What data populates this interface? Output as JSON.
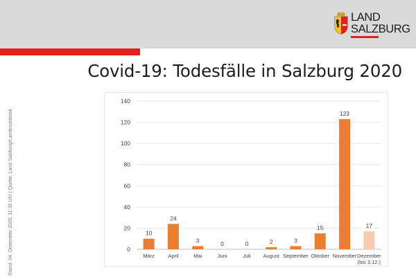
{
  "header": {
    "logo_line1": "LAND",
    "logo_line2": "SALZBURG",
    "title": "Covid-19: Todesfälle in Salzburg 2020"
  },
  "source_note": "Stand: 04. Dezember 2020, 11:30 Uhr | Quelle: Land Salzburg/Landesstatistik",
  "colors": {
    "header_background": "#dadada",
    "accent_red": "#e3211b",
    "bar": "#ed7d31",
    "bar_partial": "#f8cbad",
    "gridline": "#e6e6e6"
  },
  "chart_data": {
    "type": "bar",
    "categories": [
      "März",
      "April",
      "Mai",
      "Juni",
      "Juli",
      "August",
      "September",
      "Oktober",
      "November",
      "Dezember (bis 3.12.)"
    ],
    "category_lines": [
      [
        "März"
      ],
      [
        "April"
      ],
      [
        "Mai"
      ],
      [
        "Juni"
      ],
      [
        "Juli"
      ],
      [
        "August"
      ],
      [
        "September"
      ],
      [
        "Oktober"
      ],
      [
        "November"
      ],
      [
        "Dezember",
        "(bis 3.12.)"
      ]
    ],
    "values": [
      10,
      24,
      3,
      0,
      0,
      2,
      3,
      15,
      123,
      17
    ],
    "partial_month_index": 9,
    "data_labels": [
      "10",
      "24",
      "3",
      "0",
      "0",
      "2",
      "3",
      "15",
      "123",
      "17"
    ],
    "yticks": [
      0,
      20,
      40,
      60,
      80,
      100,
      120,
      140
    ],
    "ylim": [
      0,
      140
    ],
    "grid": true,
    "legend": "none",
    "title": "",
    "xlabel": "",
    "ylabel": ""
  }
}
